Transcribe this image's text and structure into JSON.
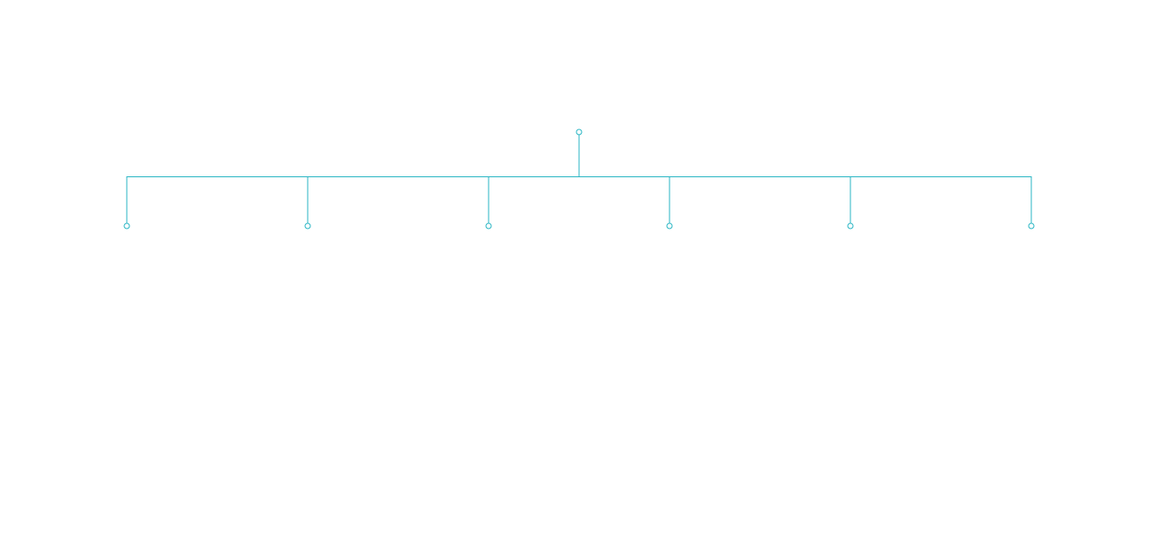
{
  "diagram": {
    "type": "tree",
    "orientation": "top-down",
    "connector_style": "elbow",
    "colors": {
      "link": "#2ab6c4",
      "node_stroke": "#2ab6c4",
      "node_fill": "#ffffff",
      "background": "#ffffff"
    },
    "root": {
      "label": "",
      "children": [
        {
          "label": ""
        },
        {
          "label": ""
        },
        {
          "label": ""
        },
        {
          "label": ""
        },
        {
          "label": ""
        },
        {
          "label": ""
        }
      ]
    }
  }
}
